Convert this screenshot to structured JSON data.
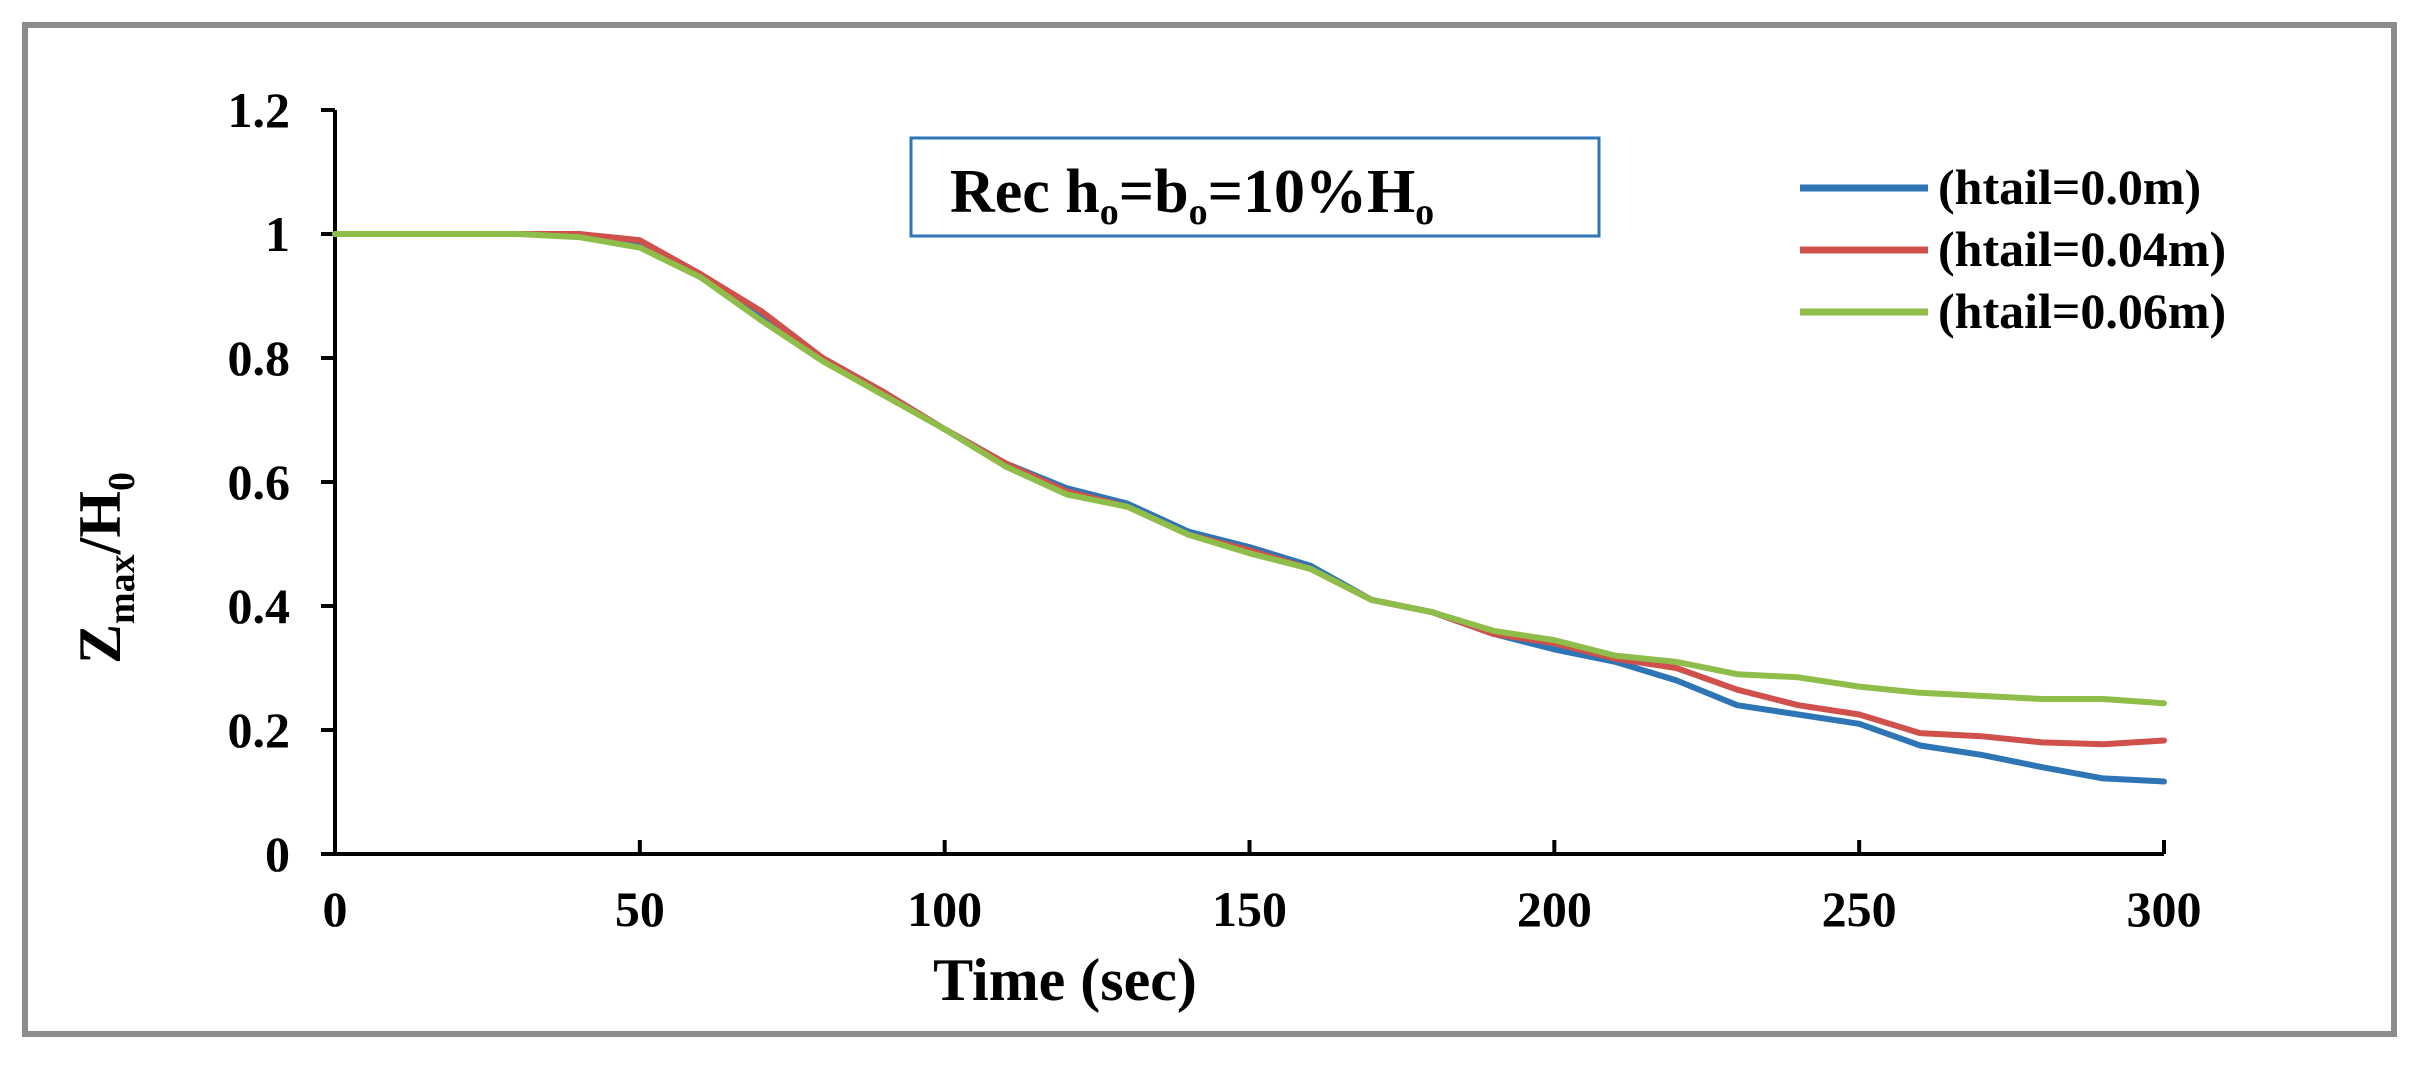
{
  "chart_data": {
    "type": "line",
    "title": "",
    "xlabel": "Time (sec)",
    "ylabel": {
      "main": "Z",
      "sub": "max",
      "rest": "/H",
      "sub2": "0"
    },
    "xlim": [
      0,
      300
    ],
    "ylim": [
      0,
      1.2
    ],
    "xticks": [
      0,
      50,
      100,
      150,
      200,
      250,
      300
    ],
    "yticks": [
      0,
      0.2,
      0.4,
      0.6,
      0.8,
      1,
      1.2
    ],
    "ytick_labels": [
      "0",
      "0.2",
      "0.4",
      "0.6",
      "0.8",
      "1",
      "1.2"
    ],
    "grid": false,
    "legend_position": "top-right",
    "annotation": {
      "p1": "Rec h",
      "s1": "o",
      "p2": "=b",
      "s2": "o",
      "p3": "=10%H",
      "s3": "o"
    },
    "x": [
      0,
      10,
      20,
      30,
      40,
      50,
      60,
      70,
      80,
      90,
      100,
      110,
      120,
      130,
      140,
      150,
      160,
      170,
      180,
      190,
      200,
      210,
      220,
      230,
      240,
      250,
      260,
      270,
      280,
      290,
      300
    ],
    "series": [
      {
        "name": "(htail=0.0m)",
        "color": "#2e75b6",
        "values": [
          1,
          1,
          1,
          1,
          1,
          0.985,
          0.93,
          0.87,
          0.8,
          0.745,
          0.685,
          0.63,
          0.59,
          0.565,
          0.52,
          0.495,
          0.465,
          0.41,
          0.39,
          0.355,
          0.33,
          0.31,
          0.28,
          0.24,
          0.225,
          0.21,
          0.175,
          0.16,
          0.14,
          0.122,
          0.117
        ]
      },
      {
        "name": "(htail=0.04m)",
        "color": "#d0504c",
        "values": [
          1,
          1,
          1,
          1,
          1,
          0.99,
          0.935,
          0.875,
          0.8,
          0.745,
          0.685,
          0.63,
          0.585,
          0.56,
          0.515,
          0.49,
          0.46,
          0.41,
          0.39,
          0.355,
          0.34,
          0.315,
          0.3,
          0.265,
          0.24,
          0.225,
          0.195,
          0.19,
          0.18,
          0.177,
          0.183
        ]
      },
      {
        "name": "(htail=0.06m)",
        "color": "#8ebd4a",
        "values": [
          1,
          1,
          1,
          1,
          0.995,
          0.978,
          0.93,
          0.86,
          0.795,
          0.74,
          0.685,
          0.625,
          0.58,
          0.56,
          0.515,
          0.485,
          0.46,
          0.41,
          0.39,
          0.36,
          0.345,
          0.32,
          0.31,
          0.29,
          0.285,
          0.27,
          0.26,
          0.255,
          0.25,
          0.25,
          0.243
        ]
      }
    ]
  }
}
